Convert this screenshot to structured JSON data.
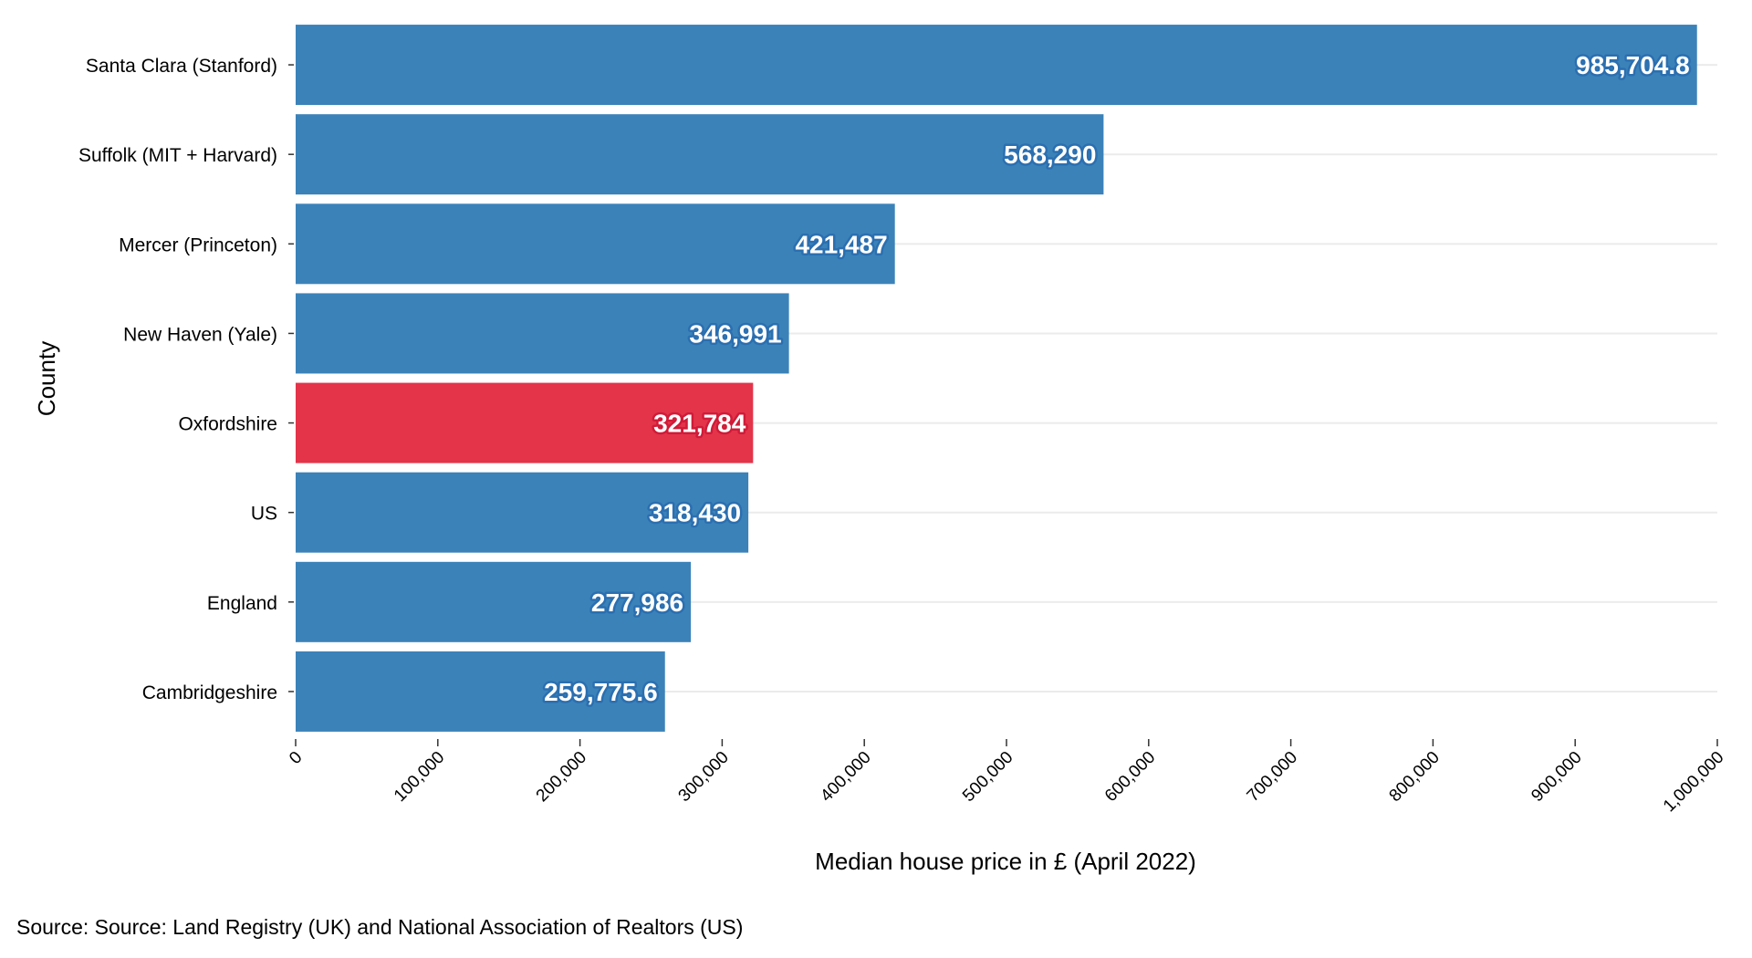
{
  "chart_data": {
    "type": "bar",
    "orientation": "horizontal",
    "categories": [
      "Santa Clara (Stanford)",
      "Suffolk (MIT + Harvard)",
      "Mercer (Princeton)",
      "New Haven (Yale)",
      "Oxfordshire",
      "US",
      "England",
      "Cambridgeshire"
    ],
    "values": [
      985704.8,
      568290,
      421487,
      346991,
      321784,
      318430,
      277986,
      259775.6
    ],
    "value_labels": [
      "985,704.8",
      "568,290",
      "421,487",
      "346,991",
      "321,784",
      "318,430",
      "277,986",
      "259,775.6"
    ],
    "bar_colors": [
      "#3b82b9",
      "#3b82b9",
      "#3b82b9",
      "#3b82b9",
      "#e3344a",
      "#3b82b9",
      "#3b82b9",
      "#3b82b9"
    ],
    "label_outline_colors": [
      "#2b6fb0",
      "#2b6fb0",
      "#2b6fb0",
      "#2b6fb0",
      "#d01b38",
      "#2b6fb0",
      "#2b6fb0",
      "#2b6fb0"
    ],
    "xlabel": "Median house price in £ (April 2022)",
    "ylabel": "County",
    "xlim": [
      0,
      1000000
    ],
    "x_ticks": [
      0,
      100000,
      200000,
      300000,
      400000,
      500000,
      600000,
      700000,
      800000,
      900000,
      1000000
    ],
    "x_tick_labels": [
      "0",
      "100,000",
      "200,000",
      "300,000",
      "400,000",
      "500,000",
      "600,000",
      "700,000",
      "800,000",
      "900,000",
      "1,000,000"
    ],
    "grid": "horizontal",
    "grid_color": "#ebebeb"
  },
  "source": "Source: Source: Land Registry (UK) and National Association of Realtors (US)"
}
